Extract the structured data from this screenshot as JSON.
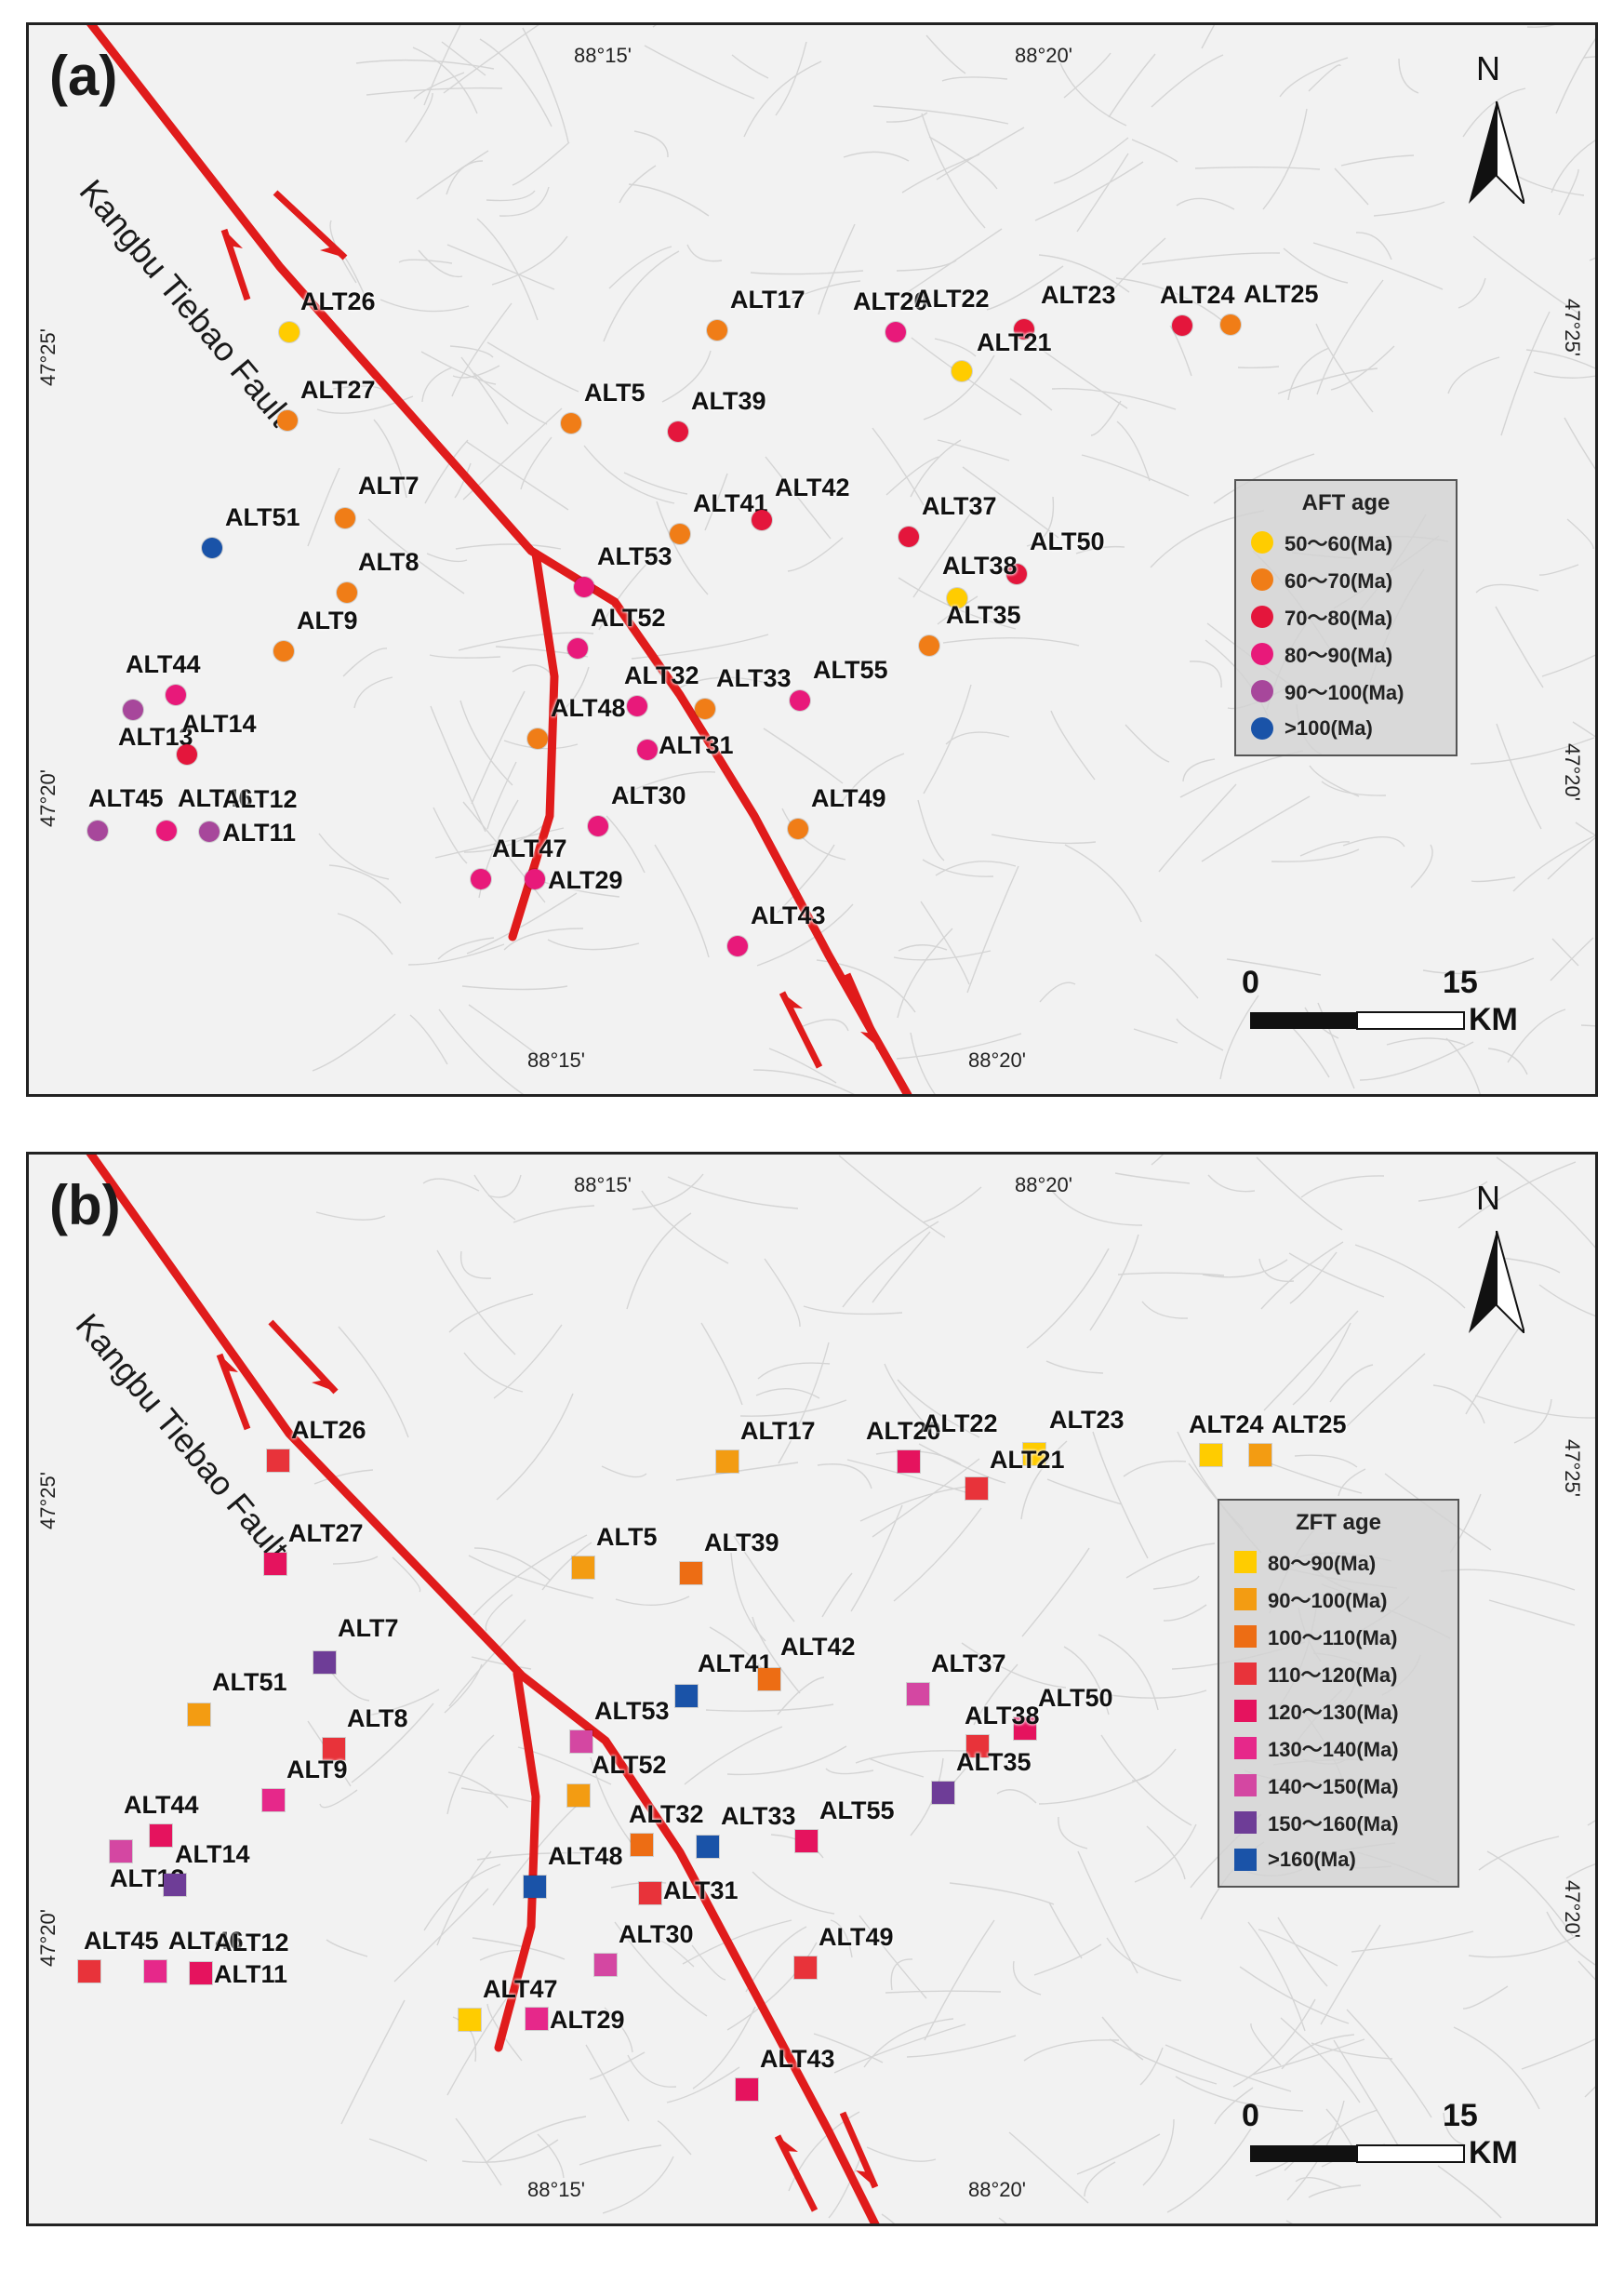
{
  "colors": {
    "fault": "#e01b1b",
    "terrain_bg": "#f2f2f2",
    "ridge": "#bdbdbd"
  },
  "fault_name": "Kangbu Tiebao Fault",
  "north_label": "N",
  "scale": {
    "zero": "0",
    "max": "15",
    "unit": "KM"
  },
  "coords": {
    "lon1": "88°15'",
    "lon2": "88°20'",
    "lat1": "47°25'",
    "lat2": "47°20'"
  },
  "panels": [
    {
      "label": "(a)",
      "marker": "circle",
      "legend": {
        "title": "AFT age",
        "items": [
          {
            "label": "50～60(Ma)",
            "color": "#ffcc00"
          },
          {
            "label": "60～70(Ma)",
            "color": "#f07d17"
          },
          {
            "label": "70～80(Ma)",
            "color": "#e4163c"
          },
          {
            "label": "80～90(Ma)",
            "color": "#e8197a"
          },
          {
            "label": "90～100(Ma)",
            "color": "#a7479b"
          },
          {
            "label": ">100(Ma)",
            "color": "#1a53a8"
          }
        ]
      },
      "sites": [
        {
          "name": "ALT26",
          "color": "#ffcc00"
        },
        {
          "name": "ALT17",
          "color": "#f07d17"
        },
        {
          "name": "ALT20",
          "color": "#e8197a"
        },
        {
          "name": "ALT22",
          "color": "#e4163c"
        },
        {
          "name": "ALT23",
          "color": ""
        },
        {
          "name": "ALT21",
          "color": "#ffcc00"
        },
        {
          "name": "ALT24",
          "color": "#e4163c"
        },
        {
          "name": "ALT25",
          "color": "#f07d17"
        },
        {
          "name": "ALT27",
          "color": "#f07d17"
        },
        {
          "name": "ALT5",
          "color": "#f07d17"
        },
        {
          "name": "ALT39",
          "color": "#e4163c"
        },
        {
          "name": "ALT7",
          "color": "#f07d17"
        },
        {
          "name": "ALT41",
          "color": "#f07d17"
        },
        {
          "name": "ALT42",
          "color": "#e4163c"
        },
        {
          "name": "ALT37",
          "color": "#e4163c"
        },
        {
          "name": "ALT51",
          "color": "#1a53a8"
        },
        {
          "name": "ALT50",
          "color": "#e4163c"
        },
        {
          "name": "ALT8",
          "color": "#f07d17"
        },
        {
          "name": "ALT53",
          "color": "#e8197a"
        },
        {
          "name": "ALT38",
          "color": "#ffcc00"
        },
        {
          "name": "ALT35",
          "color": "#f07d17"
        },
        {
          "name": "ALT9",
          "color": "#f07d17"
        },
        {
          "name": "ALT52",
          "color": "#e8197a"
        },
        {
          "name": "ALT44",
          "color": "#e8197a"
        },
        {
          "name": "ALT32",
          "color": "#e8197a"
        },
        {
          "name": "ALT33",
          "color": "#f07d17"
        },
        {
          "name": "ALT55",
          "color": "#e8197a"
        },
        {
          "name": "ALT13",
          "color": "#a7479b"
        },
        {
          "name": "ALT14",
          "color": "#e4163c"
        },
        {
          "name": "ALT48",
          "color": "#f07d17"
        },
        {
          "name": "ALT31",
          "color": "#e8197a"
        },
        {
          "name": "ALT45",
          "color": "#a7479b"
        },
        {
          "name": "ALT46",
          "color": "#e8197a"
        },
        {
          "name": "ALT12",
          "color": "#a7479b"
        },
        {
          "name": "ALT11",
          "color": ""
        },
        {
          "name": "ALT30",
          "color": "#e8197a"
        },
        {
          "name": "ALT49",
          "color": "#f07d17"
        },
        {
          "name": "ALT47",
          "color": "#e8197a"
        },
        {
          "name": "ALT29",
          "color": "#e8197a"
        },
        {
          "name": "ALT43",
          "color": "#e8197a"
        }
      ]
    },
    {
      "label": "(b)",
      "marker": "square",
      "legend": {
        "title": "ZFT age",
        "items": [
          {
            "label": "80～90(Ma)",
            "color": "#ffcc00"
          },
          {
            "label": "90～100(Ma)",
            "color": "#f39c12"
          },
          {
            "label": "100～110(Ma)",
            "color": "#ed6d14"
          },
          {
            "label": "110～120(Ma)",
            "color": "#e8333a"
          },
          {
            "label": "120～130(Ma)",
            "color": "#e5135e"
          },
          {
            "label": "130～140(Ma)",
            "color": "#e6288a"
          },
          {
            "label": "140～150(Ma)",
            "color": "#d447a2"
          },
          {
            "label": "150～160(Ma)",
            "color": "#6e3d97"
          },
          {
            "label": ">160(Ma)",
            "color": "#1a53a8"
          }
        ]
      },
      "sites": [
        {
          "name": "ALT26",
          "color": "#e8333a"
        },
        {
          "name": "ALT17",
          "color": "#f39c12"
        },
        {
          "name": "ALT20",
          "color": "#e5135e"
        },
        {
          "name": "ALT22",
          "color": "#ffcc00"
        },
        {
          "name": "ALT23",
          "color": ""
        },
        {
          "name": "ALT21",
          "color": "#e8333a"
        },
        {
          "name": "ALT24",
          "color": "#ffcc00"
        },
        {
          "name": "ALT25",
          "color": "#f39c12"
        },
        {
          "name": "ALT27",
          "color": "#e5135e"
        },
        {
          "name": "ALT5",
          "color": "#f39c12"
        },
        {
          "name": "ALT39",
          "color": "#ed6d14"
        },
        {
          "name": "ALT7",
          "color": "#6e3d97"
        },
        {
          "name": "ALT41",
          "color": "#1a53a8"
        },
        {
          "name": "ALT42",
          "color": "#ed6d14"
        },
        {
          "name": "ALT37",
          "color": "#d447a2"
        },
        {
          "name": "ALT51",
          "color": "#f39c12"
        },
        {
          "name": "ALT50",
          "color": "#e5135e"
        },
        {
          "name": "ALT8",
          "color": "#e8333a"
        },
        {
          "name": "ALT53",
          "color": "#d447a2"
        },
        {
          "name": "ALT38",
          "color": "#e8333a"
        },
        {
          "name": "ALT35",
          "color": "#6e3d97"
        },
        {
          "name": "ALT9",
          "color": "#e6288a"
        },
        {
          "name": "ALT52",
          "color": "#f39c12"
        },
        {
          "name": "ALT44",
          "color": "#e5135e"
        },
        {
          "name": "ALT32",
          "color": "#ed6d14"
        },
        {
          "name": "ALT33",
          "color": "#1a53a8"
        },
        {
          "name": "ALT55",
          "color": "#e5135e"
        },
        {
          "name": "ALT13",
          "color": "#d447a2"
        },
        {
          "name": "ALT14",
          "color": "#6e3d97"
        },
        {
          "name": "ALT48",
          "color": "#1a53a8"
        },
        {
          "name": "ALT31",
          "color": "#e8333a"
        },
        {
          "name": "ALT45",
          "color": "#e8333a"
        },
        {
          "name": "ALT46",
          "color": "#e6288a"
        },
        {
          "name": "ALT12",
          "color": "#e5135e"
        },
        {
          "name": "ALT11",
          "color": ""
        },
        {
          "name": "ALT30",
          "color": "#d447a2"
        },
        {
          "name": "ALT49",
          "color": "#e8333a"
        },
        {
          "name": "ALT47",
          "color": "#ffcc00"
        },
        {
          "name": "ALT29",
          "color": "#e6288a"
        },
        {
          "name": "ALT43",
          "color": "#e5135e"
        }
      ]
    }
  ]
}
